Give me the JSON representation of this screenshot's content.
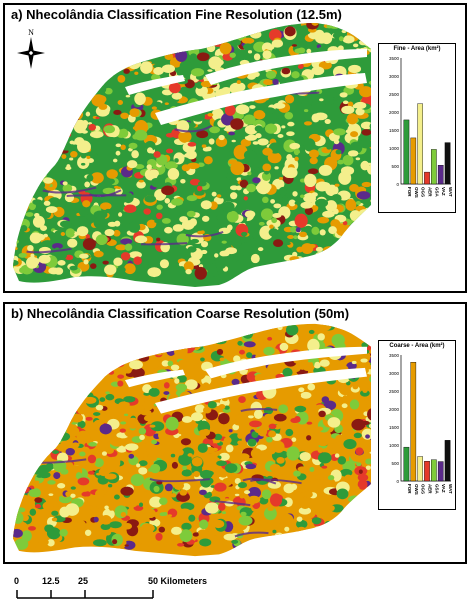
{
  "panel_a": {
    "title": "a) Nhecolândia Classification Fine Resolution (12.5m)",
    "inset": {
      "title": "Fine - Area (km²)",
      "y_ticks": [
        "3500",
        "3000",
        "2500",
        "2000",
        "1500",
        "1000",
        "500",
        "0"
      ],
      "categories": [
        "FOR",
        "OWS",
        "OGS",
        "AER",
        "GSA",
        "VAZ",
        "WAT"
      ],
      "values": [
        1780,
        1280,
        2230,
        330,
        960,
        520,
        1150
      ],
      "colors": [
        "#2e9b3a",
        "#e69b00",
        "#f4ef8c",
        "#e53a2a",
        "#7ecb3a",
        "#5b2a8a",
        "#111111"
      ]
    }
  },
  "panel_b": {
    "title": "b) Nhecolândia Classification Coarse Resolution (50m)",
    "inset": {
      "title": "Coarse - Area (km²)",
      "y_ticks": [
        "3500",
        "3000",
        "2500",
        "2000",
        "1500",
        "1000",
        "500",
        "0"
      ],
      "categories": [
        "FOR",
        "OWS",
        "OGS",
        "AER",
        "GSA",
        "VAZ",
        "WAT"
      ],
      "values": [
        940,
        3300,
        680,
        550,
        590,
        540,
        1130
      ],
      "colors": [
        "#2e9b3a",
        "#e69b00",
        "#f4ef8c",
        "#e53a2a",
        "#7ecb3a",
        "#5b2a8a",
        "#111111"
      ]
    }
  },
  "north_arrow": {
    "label": "N"
  },
  "scale_bar": {
    "labels": [
      "0",
      "12.5",
      "25",
      "50 Kilometers"
    ]
  },
  "map_colors": {
    "forest": "#2e9b3a",
    "open_woody": "#e69b00",
    "open_grass": "#f4ef8c",
    "aerial": "#e53a2a",
    "grass_aquatic": "#7ecb3a",
    "vazante": "#5b2a8a",
    "water": "#111111",
    "dark_red": "#8a1a12"
  }
}
